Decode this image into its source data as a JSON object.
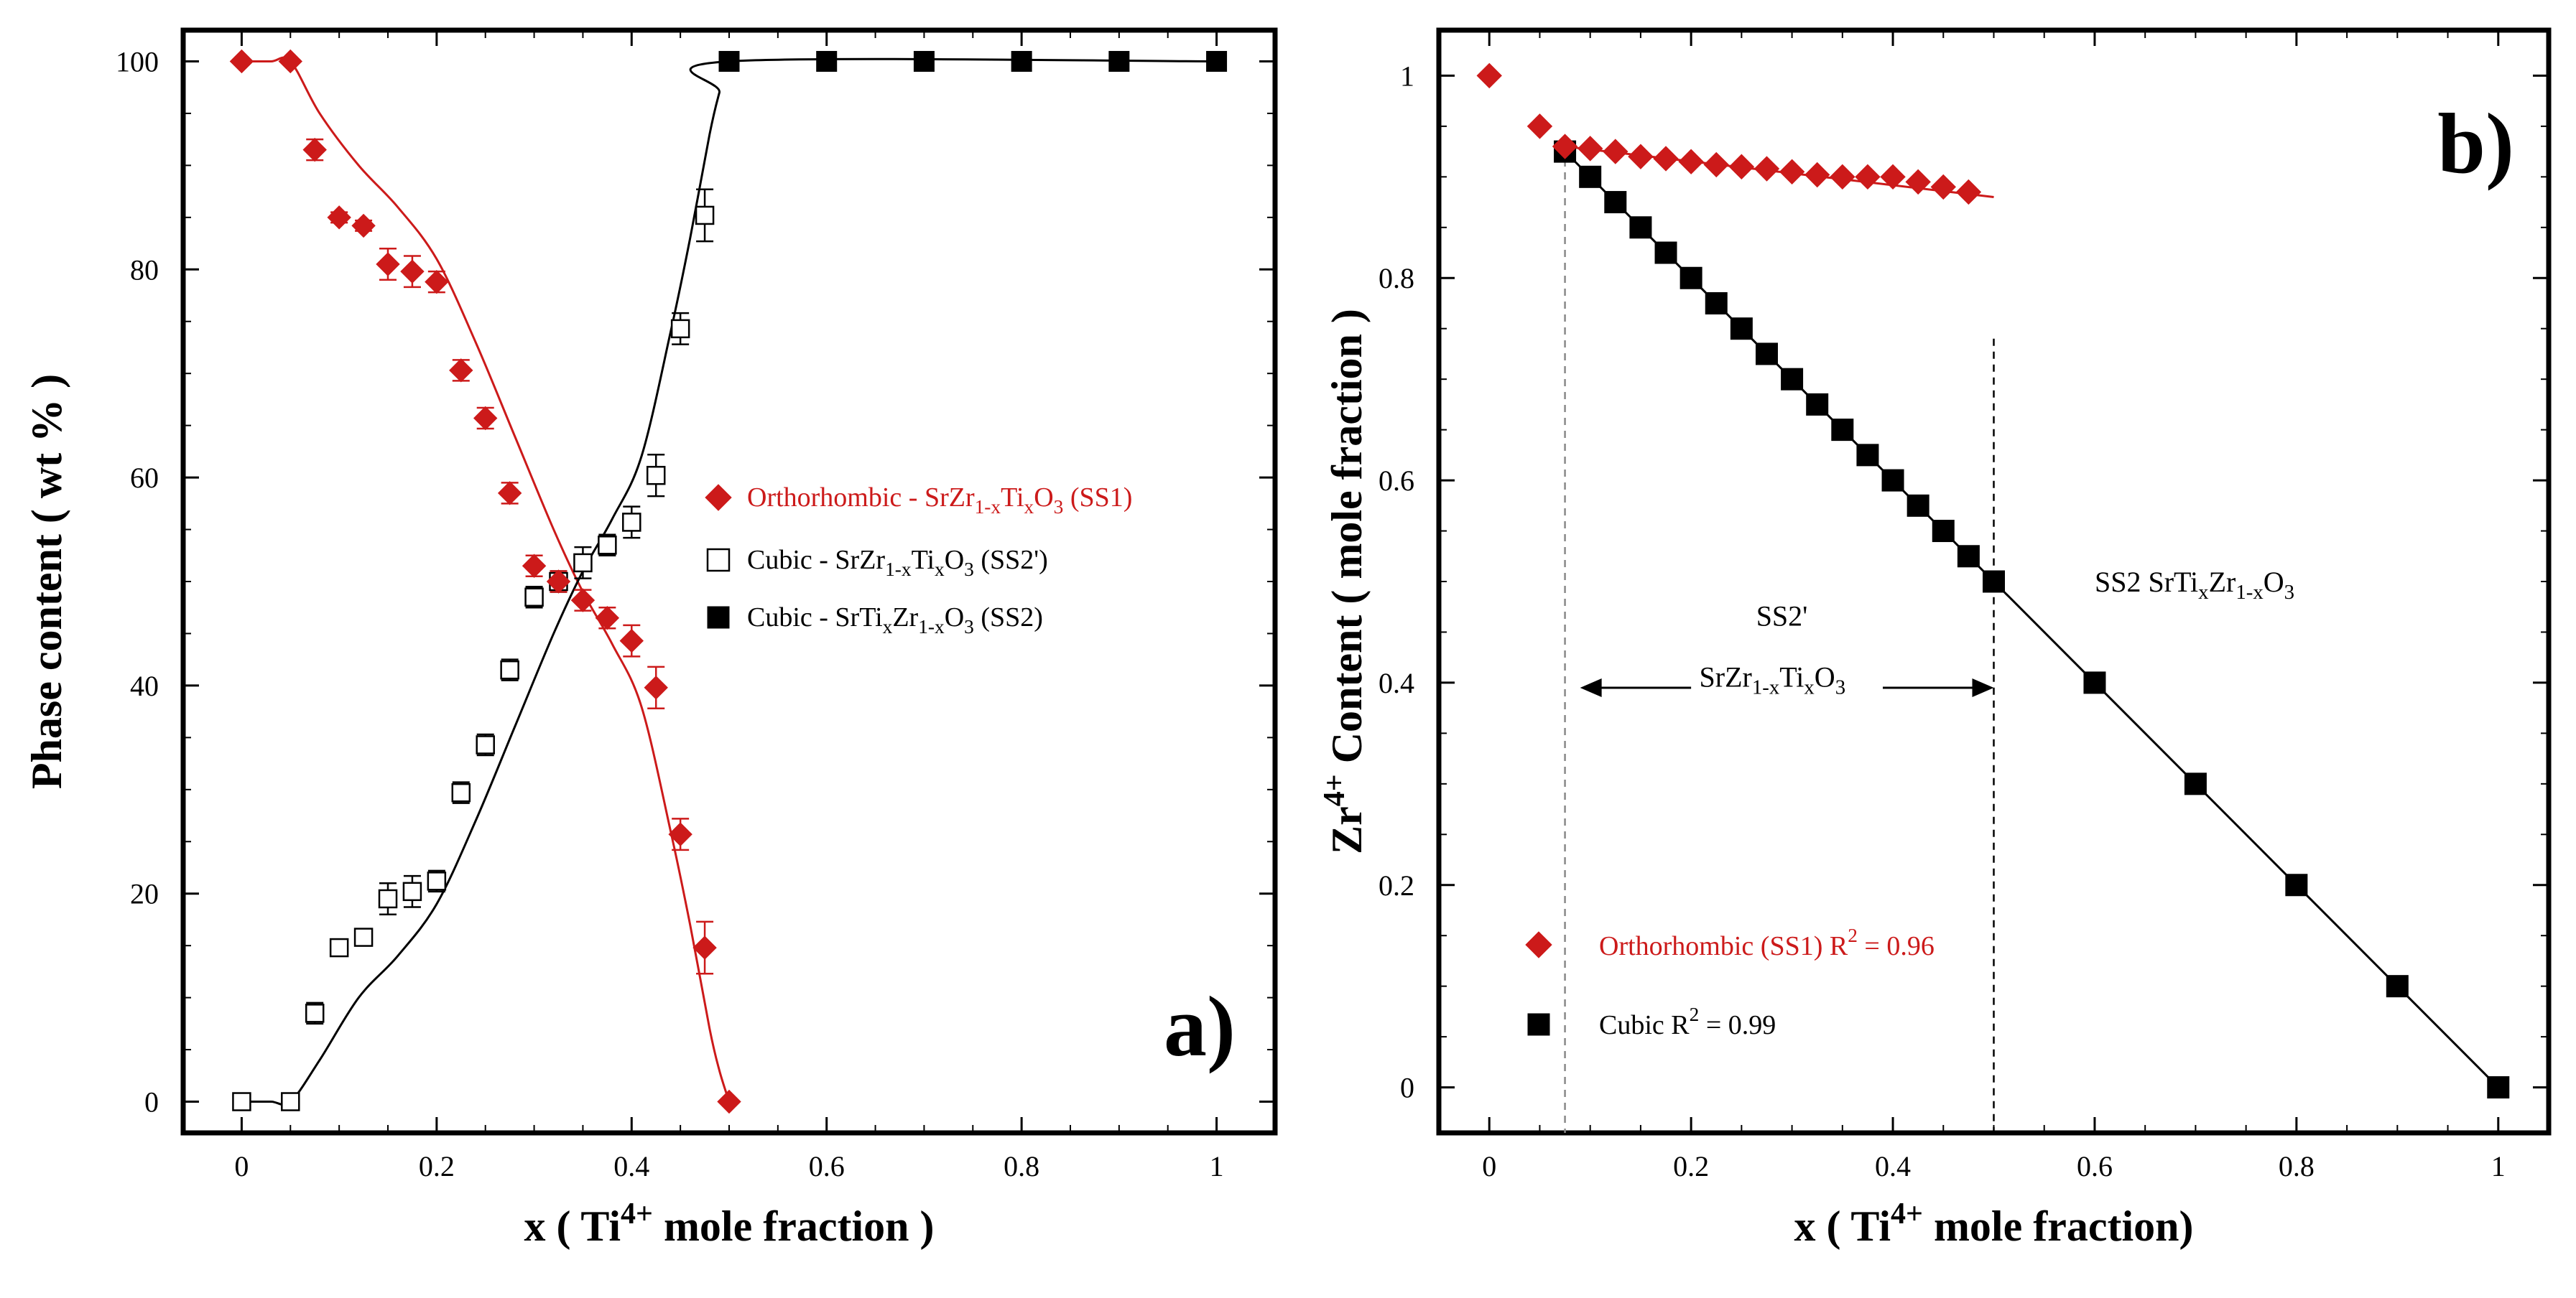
{
  "chart_data": [
    {
      "panel": "a)",
      "type": "scatter",
      "xlabel_main": "x ( Ti",
      "xlabel_sup": "4+",
      "xlabel_rest": " mole fraction )",
      "ylabel": "Phase content ( wt % )",
      "xlim": [
        -0.06,
        1.06
      ],
      "ylim": [
        -3,
        103
      ],
      "xticks": [
        "0",
        "0.2",
        "0.4",
        "0.6",
        "0.8",
        "1"
      ],
      "yticks": [
        "0",
        "20",
        "40",
        "60",
        "80",
        "100"
      ],
      "legend_position": "center-right",
      "series": [
        {
          "name": "Orthorhombic - SrZr1-xTixO3 (SS1)",
          "legend_parts": [
            "Orthorhombic - SrZr",
            "1-x",
            "Ti",
            "x",
            "O",
            "3",
            " (SS1)"
          ],
          "marker": "diamond-filled",
          "color": "#cc1a1a",
          "x": [
            0,
            0.05,
            0.075,
            0.1,
            0.125,
            0.15,
            0.175,
            0.2,
            0.225,
            0.25,
            0.275,
            0.3,
            0.325,
            0.35,
            0.375,
            0.4,
            0.425,
            0.45,
            0.475,
            0.5
          ],
          "y": [
            100,
            100,
            91.5,
            85,
            84.2,
            80.5,
            79.8,
            78.8,
            70.3,
            65.7,
            58.5,
            51.5,
            50,
            48.2,
            46.5,
            44.3,
            39.8,
            25.7,
            14.8,
            0
          ],
          "err": [
            0,
            0,
            1,
            0.5,
            0.5,
            1.5,
            1.5,
            1,
            1,
            1,
            1,
            1,
            1,
            1,
            1,
            1.5,
            2,
            1.5,
            2.5,
            0
          ],
          "fit_x": [
            0,
            0.03,
            0.05,
            0.08,
            0.12,
            0.16,
            0.2,
            0.24,
            0.28,
            0.32,
            0.35,
            0.38,
            0.41,
            0.44,
            0.46,
            0.48,
            0.49,
            0.5
          ],
          "fit_y": [
            100,
            100,
            100,
            95,
            90,
            86,
            81,
            73,
            64,
            55,
            49,
            44,
            38,
            26,
            17,
            7,
            3,
            0
          ]
        },
        {
          "name": "Cubic - SrZr1-xTixO3 (SS2')",
          "legend_parts": [
            "Cubic - SrZr",
            "1-x",
            "Ti",
            "x",
            "O",
            "3",
            " (SS2')"
          ],
          "marker": "square-open",
          "color": "#000000",
          "x": [
            0,
            0.05,
            0.075,
            0.1,
            0.125,
            0.15,
            0.175,
            0.2,
            0.225,
            0.25,
            0.275,
            0.3,
            0.325,
            0.35,
            0.375,
            0.4,
            0.425,
            0.45,
            0.475
          ],
          "y": [
            0,
            0,
            8.5,
            14.8,
            15.8,
            19.5,
            20.2,
            21.2,
            29.7,
            34.3,
            41.5,
            48.5,
            50,
            51.8,
            53.5,
            55.7,
            60.2,
            74.3,
            85.2
          ],
          "err": [
            0,
            0,
            1,
            0.5,
            0.5,
            1.5,
            1.5,
            1,
            1,
            1,
            1,
            1,
            1,
            1.5,
            1,
            1.5,
            2,
            1.5,
            2.5
          ]
        },
        {
          "name": "Cubic - SrTixZr1-xO3 (SS2)",
          "legend_parts": [
            "Cubic - SrTi",
            "x",
            "Zr",
            "1-x",
            "O",
            "3",
            " (SS2)"
          ],
          "marker": "square-filled",
          "color": "#000000",
          "x": [
            0.5,
            0.6,
            0.7,
            0.8,
            0.9,
            1.0
          ],
          "y": [
            100,
            100,
            100,
            100,
            100,
            100
          ],
          "fit_x": [
            0,
            0.03,
            0.05,
            0.08,
            0.12,
            0.16,
            0.2,
            0.24,
            0.28,
            0.32,
            0.35,
            0.38,
            0.41,
            0.44,
            0.46,
            0.48,
            0.49,
            0.5,
            1.0
          ],
          "fit_y": [
            0,
            0,
            0,
            4,
            10,
            14,
            19,
            27,
            36,
            45,
            51,
            56,
            62,
            74,
            83,
            93,
            97,
            100,
            100
          ]
        }
      ]
    },
    {
      "panel": "b)",
      "type": "scatter",
      "xlabel_main": "x ( Ti",
      "xlabel_sup": "4+",
      "xlabel_rest": " mole fraction)",
      "ylabel_main": "Zr",
      "ylabel_sup": "4+",
      "ylabel_rest": " Content ( mole fraction )",
      "xlim": [
        -0.05,
        1.05
      ],
      "ylim": [
        -0.045,
        1.045
      ],
      "xticks": [
        "0",
        "0.2",
        "0.4",
        "0.6",
        "0.8",
        "1"
      ],
      "yticks": [
        "0",
        "0.2",
        "0.4",
        "0.6",
        "0.8",
        "1"
      ],
      "legend_position": "bottom-left",
      "series": [
        {
          "name": "Orthorhombic (SS1)",
          "legend_parts": [
            "Orthorhombic (SS1)  R",
            "2",
            " = 0.96"
          ],
          "marker": "diamond-filled",
          "color": "#cc1a1a",
          "x": [
            0,
            0.05,
            0.075,
            0.1,
            0.125,
            0.15,
            0.175,
            0.2,
            0.225,
            0.25,
            0.275,
            0.3,
            0.325,
            0.35,
            0.375,
            0.4,
            0.425,
            0.45,
            0.475
          ],
          "y": [
            1.0,
            0.95,
            0.93,
            0.928,
            0.925,
            0.92,
            0.918,
            0.915,
            0.912,
            0.91,
            0.908,
            0.905,
            0.902,
            0.9,
            0.9,
            0.9,
            0.895,
            0.89,
            0.885
          ],
          "fit_x": [
            0.075,
            0.5
          ],
          "fit_y": [
            0.93,
            0.88
          ]
        },
        {
          "name": "Cubic",
          "legend_parts": [
            "Cubic R",
            "2",
            " = 0.99"
          ],
          "marker": "square-filled",
          "color": "#000000",
          "x": [
            0.075,
            0.1,
            0.125,
            0.15,
            0.175,
            0.2,
            0.225,
            0.25,
            0.275,
            0.3,
            0.325,
            0.35,
            0.375,
            0.4,
            0.425,
            0.45,
            0.475,
            0.5,
            0.6,
            0.7,
            0.8,
            0.9,
            1.0
          ],
          "y": [
            0.925,
            0.9,
            0.875,
            0.85,
            0.825,
            0.8,
            0.775,
            0.75,
            0.725,
            0.7,
            0.675,
            0.65,
            0.625,
            0.6,
            0.575,
            0.55,
            0.525,
            0.5,
            0.4,
            0.3,
            0.2,
            0.1,
            0.0
          ],
          "fit_x": [
            0.075,
            1.0
          ],
          "fit_y": [
            0.925,
            0.0
          ]
        }
      ],
      "vlines": [
        0.075,
        0.5
      ],
      "annotations": {
        "ss2_label_parts": [
          "SS2 SrTi",
          "x",
          "Zr",
          "1-x",
          "O",
          "3"
        ],
        "ss2_label_x": 0.6,
        "ss2_label_y": 0.49,
        "ss2p_label": "SS2'",
        "ss2p_formula_parts": [
          "SrZr",
          "1-x",
          "Ti",
          "x",
          "O",
          "3"
        ],
        "arrow_from_x": 0.09,
        "arrow_to_x": 0.5,
        "arrow_y": 0.395,
        "ss2p_label_x": 0.29,
        "ss2p_label_y": 0.435
      }
    }
  ]
}
